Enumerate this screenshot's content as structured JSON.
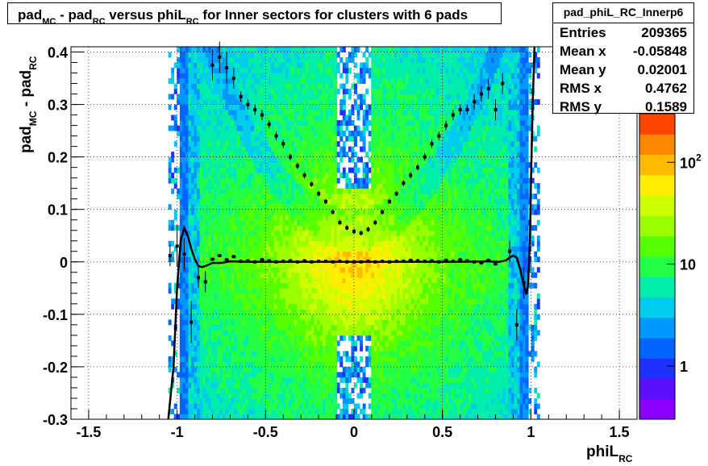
{
  "title": {
    "parts": [
      {
        "text": "pad",
        "sub": false
      },
      {
        "text": "MC",
        "sub": true
      },
      {
        "text": " - pad",
        "sub": false
      },
      {
        "text": "RC",
        "sub": true
      },
      {
        "text": " versus phiL",
        "sub": false
      },
      {
        "text": "RC",
        "sub": true
      },
      {
        "text": " for Inner sectors for clusters with 6 pads",
        "sub": false
      }
    ]
  },
  "stats": {
    "name": "pad_phiL_RC_Innerp6",
    "rows": [
      {
        "key": "Entries",
        "value": "209365"
      },
      {
        "key": "Mean x",
        "value": "-0.05848"
      },
      {
        "key": "Mean y",
        "value": "0.02001"
      },
      {
        "key": "RMS x",
        "value": "0.4762"
      },
      {
        "key": "RMS y",
        "value": "0.1589"
      }
    ]
  },
  "colors": {
    "palette": [
      "#8b00ff",
      "#5a10ff",
      "#2030ff",
      "#0066ff",
      "#0099ff",
      "#00ccee",
      "#00eeaa",
      "#22ff44",
      "#55ff00",
      "#99ff00",
      "#ccff00",
      "#ffee00",
      "#ffbb00",
      "#ff8800",
      "#ff4400"
    ],
    "profile": "#000000",
    "fit": "#000000"
  },
  "chart_data": {
    "type": "heatmap",
    "title": "pad_MC - pad_RC versus phiL_RC for Inner sectors for clusters with 6 pads",
    "xlabel": "phiL_RC",
    "ylabel": "pad_MC - pad_RC",
    "xlim": [
      -1.6,
      1.6
    ],
    "ylim": [
      -0.3,
      0.41
    ],
    "xticks": [
      -1.5,
      -1,
      -0.5,
      0,
      0.5,
      1,
      1.5
    ],
    "xtick_labels": [
      "-1.5",
      "-1",
      "-0.5",
      "0",
      "0.5",
      "1",
      "1.5"
    ],
    "yticks": [
      -0.3,
      -0.2,
      -0.1,
      0,
      0.1,
      0.2,
      0.3,
      0.4
    ],
    "ytick_labels": [
      "-0.3",
      "-0.2",
      "-0.1",
      "0",
      "0.1",
      "0.2",
      "0.3",
      "0.4"
    ],
    "grid": true,
    "z_scale": "log",
    "z_tick_labels": [
      "1",
      "10",
      "10^2"
    ],
    "z_ticks": [
      1,
      10,
      100
    ],
    "zlim": [
      0.3,
      300
    ],
    "profile_series": [
      {
        "x": -1.04,
        "y": 0.012,
        "yerr": 0.02
      },
      {
        "x": -1.0,
        "y": 0.03,
        "yerr": 0.04
      },
      {
        "x": -0.96,
        "y": 0.015,
        "yerr": 0.03
      },
      {
        "x": -0.92,
        "y": -0.115,
        "yerr": 0.04
      },
      {
        "x": -0.88,
        "y": -0.03,
        "yerr": 0.02
      },
      {
        "x": -0.84,
        "y": -0.038,
        "yerr": 0.02
      },
      {
        "x": -0.8,
        "y": 0.375,
        "yerr": 0.03
      },
      {
        "x": -0.76,
        "y": 0.39,
        "yerr": 0.03
      },
      {
        "x": -0.72,
        "y": 0.37,
        "yerr": 0.03
      },
      {
        "x": -0.68,
        "y": 0.35,
        "yerr": 0.02
      },
      {
        "x": -0.64,
        "y": 0.315,
        "yerr": 0.01
      },
      {
        "x": -0.6,
        "y": 0.3,
        "yerr": 0.01
      },
      {
        "x": -0.56,
        "y": 0.29,
        "yerr": 0.01
      },
      {
        "x": -0.52,
        "y": 0.28,
        "yerr": 0.01
      },
      {
        "x": -0.48,
        "y": 0.262,
        "yerr": 0.008
      },
      {
        "x": -0.44,
        "y": 0.24,
        "yerr": 0.008
      },
      {
        "x": -0.4,
        "y": 0.225,
        "yerr": 0.008
      },
      {
        "x": -0.36,
        "y": 0.2,
        "yerr": 0.006
      },
      {
        "x": -0.32,
        "y": 0.183,
        "yerr": 0.006
      },
      {
        "x": -0.28,
        "y": 0.165,
        "yerr": 0.006
      },
      {
        "x": -0.24,
        "y": 0.148,
        "yerr": 0.005
      },
      {
        "x": -0.2,
        "y": 0.13,
        "yerr": 0.005
      },
      {
        "x": -0.16,
        "y": 0.115,
        "yerr": 0.005
      },
      {
        "x": -0.12,
        "y": 0.095,
        "yerr": 0.005
      },
      {
        "x": -0.08,
        "y": 0.075,
        "yerr": 0.005
      },
      {
        "x": -0.04,
        "y": 0.065,
        "yerr": 0.005
      },
      {
        "x": 0.0,
        "y": 0.058,
        "yerr": 0.005
      },
      {
        "x": 0.04,
        "y": 0.055,
        "yerr": 0.005
      },
      {
        "x": 0.08,
        "y": 0.062,
        "yerr": 0.005
      },
      {
        "x": 0.12,
        "y": 0.075,
        "yerr": 0.005
      },
      {
        "x": 0.16,
        "y": 0.095,
        "yerr": 0.005
      },
      {
        "x": 0.2,
        "y": 0.115,
        "yerr": 0.005
      },
      {
        "x": 0.24,
        "y": 0.13,
        "yerr": 0.005
      },
      {
        "x": 0.28,
        "y": 0.15,
        "yerr": 0.006
      },
      {
        "x": 0.32,
        "y": 0.165,
        "yerr": 0.006
      },
      {
        "x": 0.36,
        "y": 0.18,
        "yerr": 0.006
      },
      {
        "x": 0.4,
        "y": 0.2,
        "yerr": 0.007
      },
      {
        "x": 0.44,
        "y": 0.225,
        "yerr": 0.008
      },
      {
        "x": 0.48,
        "y": 0.24,
        "yerr": 0.008
      },
      {
        "x": 0.52,
        "y": 0.26,
        "yerr": 0.009
      },
      {
        "x": 0.56,
        "y": 0.28,
        "yerr": 0.01
      },
      {
        "x": 0.6,
        "y": 0.29,
        "yerr": 0.01
      },
      {
        "x": 0.64,
        "y": 0.29,
        "yerr": 0.01
      },
      {
        "x": 0.68,
        "y": 0.305,
        "yerr": 0.015
      },
      {
        "x": 0.72,
        "y": 0.32,
        "yerr": 0.015
      },
      {
        "x": 0.76,
        "y": 0.33,
        "yerr": 0.02
      },
      {
        "x": 0.8,
        "y": 0.29,
        "yerr": 0.02
      },
      {
        "x": 0.84,
        "y": 0.34,
        "yerr": 0.02
      },
      {
        "x": 0.88,
        "y": 0.02,
        "yerr": 0.02
      },
      {
        "x": 0.92,
        "y": -0.12,
        "yerr": 0.03
      },
      {
        "x": 0.96,
        "y": -0.04,
        "yerr": 0.03
      }
    ],
    "center_band_series": [
      {
        "x": -0.8,
        "y": 0.005
      },
      {
        "x": -0.76,
        "y": 0.012
      },
      {
        "x": -0.72,
        "y": 0.004
      },
      {
        "x": -0.68,
        "y": 0.01
      },
      {
        "x": -0.64,
        "y": 0.001
      },
      {
        "x": -0.6,
        "y": 0.002
      },
      {
        "x": -0.56,
        "y": 0.0
      },
      {
        "x": -0.52,
        "y": 0.004
      },
      {
        "x": -0.48,
        "y": 0.002
      },
      {
        "x": -0.44,
        "y": 0.0
      },
      {
        "x": -0.4,
        "y": 0.001
      },
      {
        "x": -0.36,
        "y": 0.002
      },
      {
        "x": -0.32,
        "y": 0.0
      },
      {
        "x": -0.28,
        "y": 0.002
      },
      {
        "x": -0.24,
        "y": 0.0
      },
      {
        "x": -0.2,
        "y": 0.001
      },
      {
        "x": -0.16,
        "y": 0.001
      },
      {
        "x": -0.12,
        "y": 0.0
      },
      {
        "x": -0.08,
        "y": 0.001
      },
      {
        "x": -0.04,
        "y": 0.0
      },
      {
        "x": 0.0,
        "y": 0.0
      },
      {
        "x": 0.04,
        "y": 0.0
      },
      {
        "x": 0.08,
        "y": 0.001
      },
      {
        "x": 0.12,
        "y": 0.0
      },
      {
        "x": 0.16,
        "y": 0.001
      },
      {
        "x": 0.2,
        "y": 0.0
      },
      {
        "x": 0.24,
        "y": 0.001
      },
      {
        "x": 0.28,
        "y": 0.001
      },
      {
        "x": 0.32,
        "y": 0.003
      },
      {
        "x": 0.36,
        "y": 0.002
      },
      {
        "x": 0.4,
        "y": 0.001
      },
      {
        "x": 0.44,
        "y": 0.002
      },
      {
        "x": 0.48,
        "y": 0.0
      },
      {
        "x": 0.52,
        "y": 0.003
      },
      {
        "x": 0.56,
        "y": 0.001
      },
      {
        "x": 0.6,
        "y": 0.004
      },
      {
        "x": 0.64,
        "y": 0.002
      },
      {
        "x": 0.68,
        "y": 0.0
      },
      {
        "x": 0.72,
        "y": -0.002
      },
      {
        "x": 0.76,
        "y": 0.003
      },
      {
        "x": 0.8,
        "y": -0.004
      }
    ],
    "fit_curve": [
      [
        -1.05,
        -0.31
      ],
      [
        -1.02,
        -0.2
      ],
      [
        -1.0,
        -0.05
      ],
      [
        -0.98,
        0.04
      ],
      [
        -0.96,
        0.065
      ],
      [
        -0.94,
        0.05
      ],
      [
        -0.92,
        0.025
      ],
      [
        -0.9,
        0.005
      ],
      [
        -0.88,
        -0.008
      ],
      [
        -0.86,
        -0.01
      ],
      [
        -0.84,
        -0.008
      ],
      [
        -0.8,
        -0.002
      ],
      [
        -0.75,
        -0.002
      ],
      [
        -0.7,
        0.001
      ],
      [
        -0.6,
        0.0
      ],
      [
        -0.4,
        0.0
      ],
      [
        0.0,
        0.0
      ],
      [
        0.4,
        0.0
      ],
      [
        0.6,
        0.0
      ],
      [
        0.75,
        0.001
      ],
      [
        0.82,
        0.0
      ],
      [
        0.86,
        0.003
      ],
      [
        0.88,
        0.008
      ],
      [
        0.9,
        0.012
      ],
      [
        0.92,
        0.008
      ],
      [
        0.94,
        -0.015
      ],
      [
        0.96,
        -0.045
      ],
      [
        0.975,
        -0.062
      ],
      [
        0.985,
        -0.04
      ],
      [
        0.995,
        0.05
      ],
      [
        1.0,
        0.15
      ],
      [
        1.01,
        0.3
      ],
      [
        1.02,
        0.41
      ]
    ]
  }
}
